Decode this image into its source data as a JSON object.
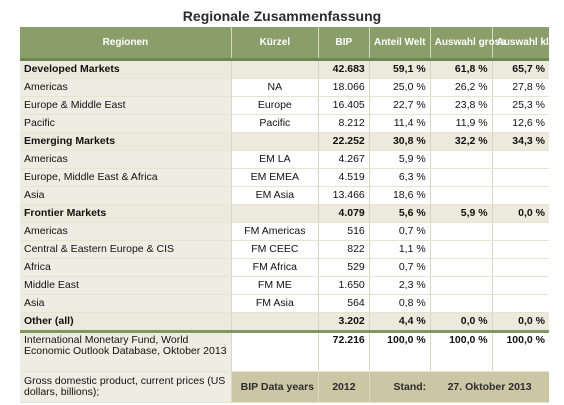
{
  "title": "Regionale Zusammenfassung",
  "headers": [
    "Regionen",
    "Kürzel",
    "BIP",
    "Anteil Welt",
    "Auswahl gross",
    "Auswahl klein"
  ],
  "rows": [
    {
      "type": "group",
      "name": "Developed Markets",
      "code": "",
      "bip": "42.683",
      "anteil": "59,1 %",
      "gross": "61,8 %",
      "klein": "65,7 %"
    },
    {
      "type": "sub",
      "name": "Americas",
      "code": "NA",
      "bip": "18.066",
      "anteil": "25,0 %",
      "gross": "26,2 %",
      "klein": "27,8 %"
    },
    {
      "type": "sub",
      "name": "Europe & Middle East",
      "code": "Europe",
      "bip": "16.405",
      "anteil": "22,7 %",
      "gross": "23,8 %",
      "klein": "25,3 %"
    },
    {
      "type": "sub",
      "name": "Pacific",
      "code": "Pacific",
      "bip": "8.212",
      "anteil": "11,4 %",
      "gross": "11,9 %",
      "klein": "12,6 %"
    },
    {
      "type": "group",
      "name": "Emerging Markets",
      "code": "",
      "bip": "22.252",
      "anteil": "30,8 %",
      "gross": "32,2 %",
      "klein": "34,3 %"
    },
    {
      "type": "sub",
      "name": "Americas",
      "code": "EM LA",
      "bip": "4.267",
      "anteil": "5,9 %",
      "gross": "",
      "klein": ""
    },
    {
      "type": "sub",
      "name": "Europe, Middle East & Africa",
      "code": "EM EMEA",
      "bip": "4.519",
      "anteil": "6,3 %",
      "gross": "",
      "klein": ""
    },
    {
      "type": "sub",
      "name": "Asia",
      "code": "EM Asia",
      "bip": "13.466",
      "anteil": "18,6 %",
      "gross": "",
      "klein": ""
    },
    {
      "type": "group",
      "name": "Frontier Markets",
      "code": "",
      "bip": "4.079",
      "anteil": "5,6 %",
      "gross": "5,9 %",
      "klein": "0,0 %"
    },
    {
      "type": "sub",
      "name": "Americas",
      "code": "FM Americas",
      "bip": "516",
      "anteil": "0,7 %",
      "gross": "",
      "klein": ""
    },
    {
      "type": "sub",
      "name": "Central & Eastern Europe & CIS",
      "code": "FM CEEC",
      "bip": "822",
      "anteil": "1,1 %",
      "gross": "",
      "klein": ""
    },
    {
      "type": "sub",
      "name": "Africa",
      "code": "FM Africa",
      "bip": "529",
      "anteil": "0,7 %",
      "gross": "",
      "klein": ""
    },
    {
      "type": "sub",
      "name": "Middle East",
      "code": "FM ME",
      "bip": "1.650",
      "anteil": "2,3 %",
      "gross": "",
      "klein": ""
    },
    {
      "type": "sub",
      "name": "Asia",
      "code": "FM Asia",
      "bip": "564",
      "anteil": "0,8 %",
      "gross": "",
      "klein": ""
    },
    {
      "type": "group other",
      "name": "Other (all)",
      "code": "",
      "bip": "3.202",
      "anteil": "4,4 %",
      "gross": "0,0 %",
      "klein": "0,0 %"
    }
  ],
  "source": {
    "name": "International Monetary Fund, World Economic Outlook Database, Oktober 2013",
    "bip": "72.216",
    "anteil": "100,0 %",
    "gross": "100,0 %",
    "klein": "100,0 %"
  },
  "footer": {
    "name": "Gross domestic product, current prices (US dollars, billions);",
    "data_label": "BIP Data years",
    "year": "2012",
    "stand_label": "Stand:",
    "stand_date": "27. Oktober 2013"
  }
}
